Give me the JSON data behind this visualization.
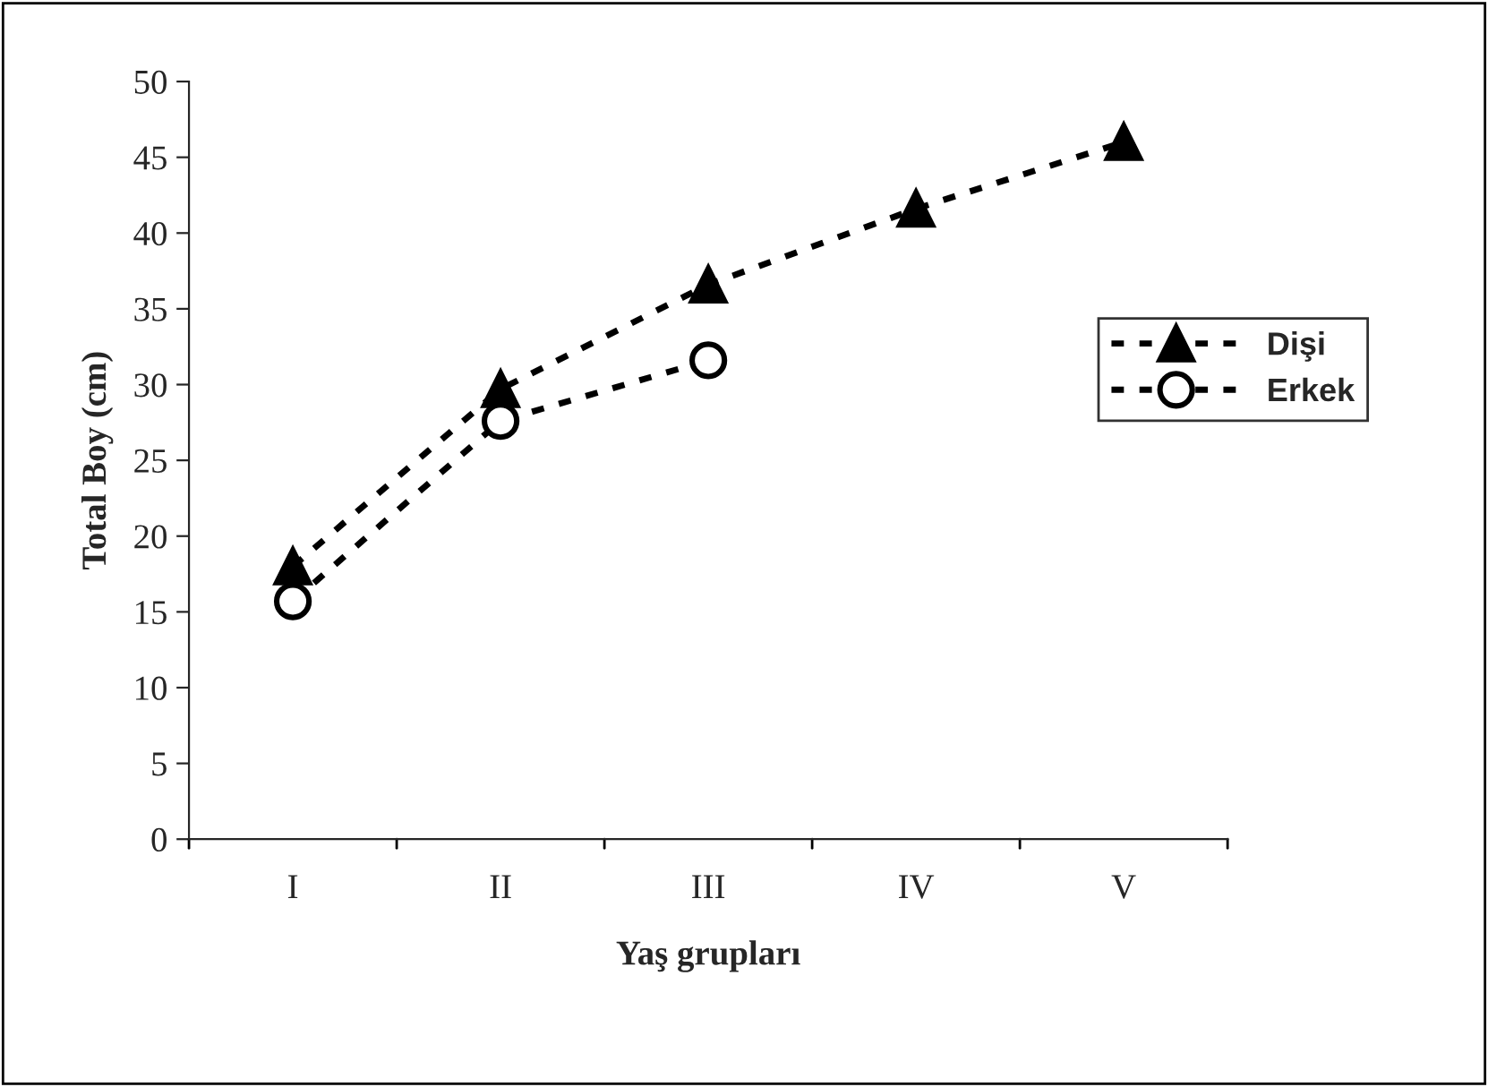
{
  "chart_data": {
    "type": "line",
    "xlabel": "Yaş grupları",
    "ylabel": "Total Boy (cm)",
    "categories": [
      "I",
      "II",
      "III",
      "IV",
      "V"
    ],
    "series": [
      {
        "name": "Dişi",
        "color": "#000000",
        "marker": "triangle",
        "values": [
          18.0,
          29.7,
          36.6,
          41.6,
          46.0
        ]
      },
      {
        "name": "Erkek",
        "color": "#000000",
        "marker": "circle",
        "values": [
          15.7,
          27.6,
          31.6,
          null,
          null
        ]
      }
    ],
    "ylim": [
      0,
      50
    ],
    "yticks": [
      0,
      5,
      10,
      15,
      20,
      25,
      30,
      35,
      40,
      45,
      50
    ],
    "line_style": "dotted",
    "legend": "right",
    "grid": false
  }
}
